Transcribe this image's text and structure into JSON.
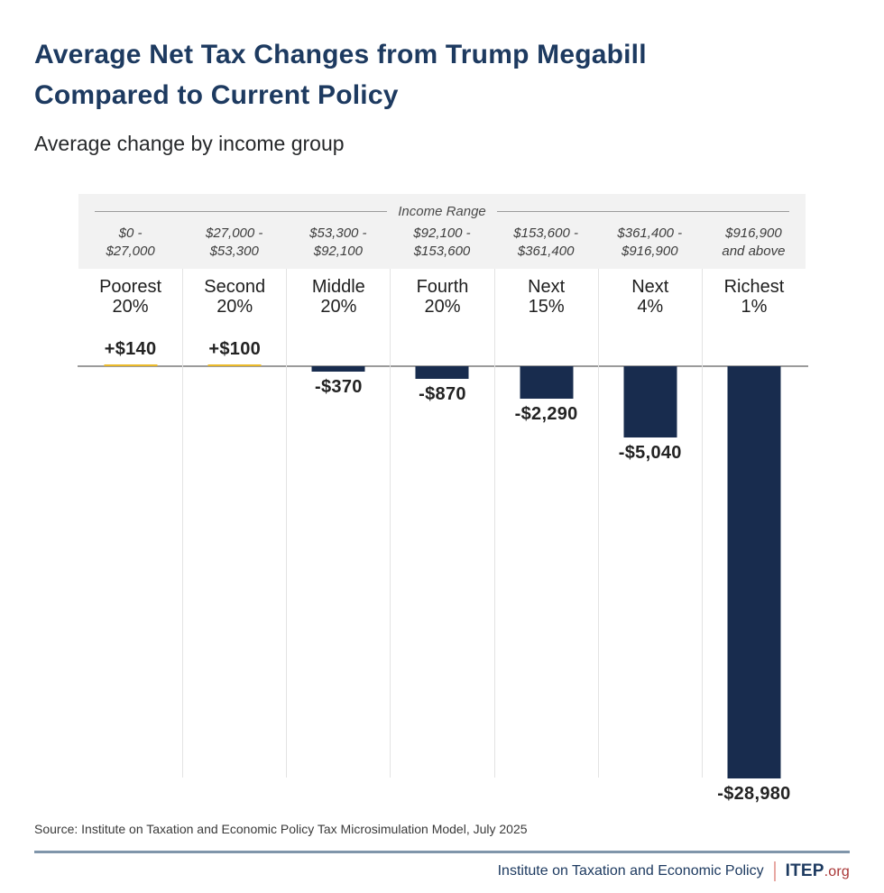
{
  "header": {
    "title_line1": "Average Net Tax Changes from Trump Megabill",
    "title_line2": "Compared to Current Policy",
    "subtitle": "Average change by income group"
  },
  "income_range": {
    "header_label": "Income Range",
    "ranges": [
      {
        "line1": "$0 -",
        "line2": "$27,000"
      },
      {
        "line1": "$27,000 -",
        "line2": "$53,300"
      },
      {
        "line1": "$53,300 -",
        "line2": "$92,100"
      },
      {
        "line1": "$92,100 -",
        "line2": "$153,600"
      },
      {
        "line1": "$153,600 -",
        "line2": "$361,400"
      },
      {
        "line1": "$361,400 -",
        "line2": "$916,900"
      },
      {
        "line1": "$916,900",
        "line2": "and above"
      }
    ]
  },
  "groups": [
    {
      "label_line1": "Poorest",
      "label_line2": "20%",
      "value_label": "+$140"
    },
    {
      "label_line1": "Second",
      "label_line2": "20%",
      "value_label": "+$100"
    },
    {
      "label_line1": "Middle",
      "label_line2": "20%",
      "value_label": "-$370"
    },
    {
      "label_line1": "Fourth",
      "label_line2": "20%",
      "value_label": "-$870"
    },
    {
      "label_line1": "Next",
      "label_line2": "15%",
      "value_label": "-$2,290"
    },
    {
      "label_line1": "Next",
      "label_line2": "4%",
      "value_label": "-$5,040"
    },
    {
      "label_line1": "Richest",
      "label_line2": "1%",
      "value_label": "-$28,980"
    }
  ],
  "chart_data": {
    "type": "bar",
    "title": "Average Net Tax Changes from Trump Megabill Compared to Current Policy",
    "subtitle": "Average change by income group",
    "categories": [
      "Poorest 20%",
      "Second 20%",
      "Middle 20%",
      "Fourth 20%",
      "Next 15%",
      "Next 4%",
      "Richest 1%"
    ],
    "income_ranges": [
      "$0 - $27,000",
      "$27,000 - $53,300",
      "$53,300 - $92,100",
      "$92,100 - $153,600",
      "$153,600 - $361,400",
      "$361,400 - $916,900",
      "$916,900 and above"
    ],
    "values": [
      140,
      100,
      -370,
      -870,
      -2290,
      -5040,
      -28980
    ],
    "data_labels": [
      "+$140",
      "+$100",
      "-$370",
      "-$870",
      "-$2,290",
      "-$5,040",
      "-$28,980"
    ],
    "baseline": 0,
    "ylim": [
      -28980,
      140
    ],
    "grid": false,
    "legend": "none",
    "positive_color": "#eab929",
    "negative_color": "#182c4e"
  },
  "footer": {
    "source": "Source: Institute on Taxation and Economic Policy Tax Microsimulation Model, July 2025",
    "org_name": "Institute on Taxation and Economic Policy",
    "brand": "ITEP",
    "brand_suffix": ".org"
  },
  "colors": {
    "navy": "#1d3a60",
    "bar_navy": "#182c4e",
    "gold": "#eab929",
    "band_bg": "#f2f2f2",
    "divider_gray": "#e3e3e3",
    "zero_line": "#9b9b9b",
    "muted_gray": "#4a4a4a",
    "footer_rule": "#7f95aa",
    "brand_red": "#a83434",
    "brand_divider": "#e8a9a4"
  }
}
